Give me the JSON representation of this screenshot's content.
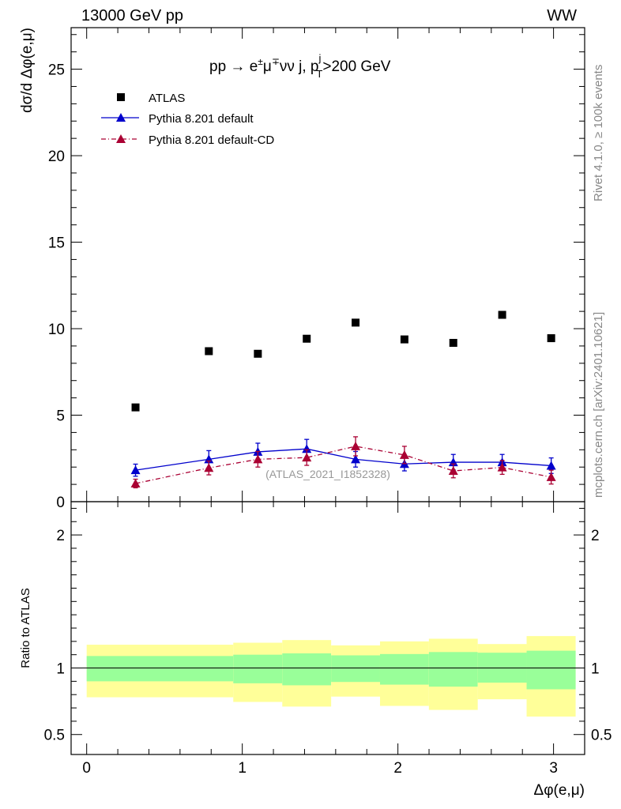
{
  "header": {
    "energy_label": "13000 GeV pp",
    "process_label": "WW"
  },
  "side_labels": {
    "rivet": "Rivet 4.1.0, ≥ 100k events",
    "mcplots": "mcplots.cern.ch [arXiv:2401.10621]"
  },
  "chart_data": [
    {
      "type": "scatter",
      "panel": "main",
      "title": {
        "prefix": "pp → e",
        "charge_e": "±",
        "mu": "μ",
        "charge_mu": "∓",
        "rest": "νν j, p",
        "sup_j": "j",
        "sub_T": "T",
        "cut": ">200 GeV"
      },
      "ylabel": "dσ/d Δφ(e,μ)",
      "xlim": [
        -0.1,
        3.2
      ],
      "ylim": [
        0,
        27.4
      ],
      "yticks": [
        0,
        5,
        10,
        15,
        20,
        25
      ],
      "yticks_minor": [
        1,
        2,
        3,
        4,
        6,
        7,
        8,
        9,
        11,
        12,
        13,
        14,
        16,
        17,
        18,
        19,
        21,
        22,
        23,
        24,
        26,
        27
      ],
      "watermark": "(ATLAS_2021_I1852328)",
      "legend_position": "top-left",
      "series": [
        {
          "name": "ATLAS",
          "color": "#000000",
          "marker": "square",
          "x": [
            0.314,
            0.785,
            1.1,
            1.414,
            1.728,
            2.042,
            2.356,
            2.67,
            2.985
          ],
          "y": [
            5.45,
            8.7,
            8.55,
            9.42,
            10.35,
            9.38,
            9.18,
            10.8,
            9.45
          ]
        },
        {
          "name": "Pythia 8.201 default",
          "color": "#0000cc",
          "marker": "triangle",
          "line": "solid",
          "x": [
            0.314,
            0.785,
            1.1,
            1.414,
            1.728,
            2.042,
            2.356,
            2.67,
            2.985
          ],
          "y": [
            1.82,
            2.45,
            2.88,
            3.05,
            2.45,
            2.18,
            2.28,
            2.28,
            2.08
          ],
          "err": [
            0.35,
            0.5,
            0.5,
            0.55,
            0.45,
            0.4,
            0.45,
            0.45,
            0.45
          ]
        },
        {
          "name": "Pythia 8.201 default-CD",
          "color": "#aa0033",
          "marker": "triangle",
          "line": "dashdot",
          "x": [
            0.314,
            0.785,
            1.1,
            1.414,
            1.728,
            2.042,
            2.356,
            2.67,
            2.985
          ],
          "y": [
            1.05,
            1.95,
            2.45,
            2.55,
            3.2,
            2.7,
            1.78,
            1.98,
            1.42
          ],
          "err": [
            0.25,
            0.4,
            0.45,
            0.45,
            0.55,
            0.5,
            0.4,
            0.4,
            0.4
          ]
        }
      ]
    },
    {
      "type": "area",
      "panel": "ratio",
      "ylabel": "Ratio to ATLAS",
      "xlabel": "Δφ(e,μ)",
      "xlim": [
        -0.1,
        3.2
      ],
      "ylim": [
        0.35,
        2.25
      ],
      "xticks": [
        0,
        1,
        2,
        3
      ],
      "xticks_minor": [
        0.2,
        0.4,
        0.6,
        0.8,
        1.2,
        1.4,
        1.6,
        1.8,
        2.2,
        2.4,
        2.6,
        2.8,
        3.2
      ],
      "yticks": [
        0.5,
        1,
        2
      ],
      "yticks_label": [
        "0.5",
        "1",
        "2"
      ],
      "yticks_minor": [
        0.6,
        0.7,
        0.8,
        0.9,
        1.1,
        1.2,
        1.3,
        1.4,
        1.5,
        1.6,
        1.7,
        1.8,
        1.9,
        2.1,
        2.2
      ],
      "reference_line": 1,
      "bin_edges": [
        0.0,
        0.942,
        1.257,
        1.571,
        1.885,
        2.199,
        2.513,
        2.827,
        3.142
      ],
      "stat_band": {
        "color": "#99ff99",
        "lo": [
          0.9,
          0.885,
          0.87,
          0.895,
          0.875,
          0.86,
          0.89,
          0.84
        ],
        "hi": [
          1.09,
          1.1,
          1.11,
          1.095,
          1.105,
          1.12,
          1.115,
          1.13
        ]
      },
      "total_band": {
        "color": "#ffff99",
        "lo": [
          0.78,
          0.745,
          0.71,
          0.785,
          0.715,
          0.685,
          0.765,
          0.635
        ],
        "hi": [
          1.175,
          1.19,
          1.21,
          1.17,
          1.2,
          1.22,
          1.18,
          1.24
        ]
      }
    }
  ]
}
